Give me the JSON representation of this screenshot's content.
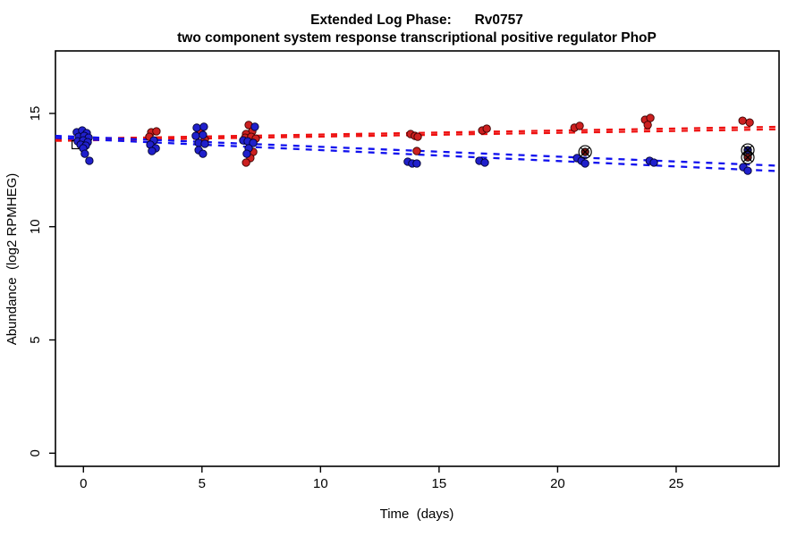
{
  "chart_data": {
    "type": "scatter",
    "title": "Extended Log Phase:      Rv0757",
    "subtitle": "two component system response transcriptional positive regulator PhoP",
    "x_axis": {
      "label": "Time  (days)",
      "ticks": [
        0,
        5,
        10,
        15,
        20,
        25
      ],
      "range": [
        -1.18,
        29.34
      ]
    },
    "y_axis": {
      "label": "Abundance  (log2 RPMHEG)",
      "ticks": [
        0,
        5,
        10,
        15
      ],
      "range": [
        -0.58,
        17.76
      ]
    },
    "grid": "off",
    "legend": "none",
    "series": [
      {
        "name": "red-condition",
        "color": "#cc2020",
        "edge": "#3a0000",
        "points": [
          [
            2.86,
            14.17
          ],
          [
            3.08,
            14.21
          ],
          [
            2.78,
            13.97
          ],
          [
            4.93,
            14.25
          ],
          [
            5.12,
            13.85
          ],
          [
            6.97,
            14.49
          ],
          [
            7.12,
            14.21
          ],
          [
            6.86,
            14.09
          ],
          [
            6.82,
            13.93
          ],
          [
            7.08,
            13.97
          ],
          [
            7.27,
            13.89
          ],
          [
            7.16,
            13.3
          ],
          [
            7.04,
            13.03
          ],
          [
            6.86,
            12.83
          ],
          [
            13.8,
            14.09
          ],
          [
            13.98,
            14.01
          ],
          [
            14.1,
            13.97
          ],
          [
            14.06,
            13.34
          ],
          [
            16.82,
            14.25
          ],
          [
            17.01,
            14.33
          ],
          [
            20.71,
            14.37
          ],
          [
            20.93,
            14.45
          ],
          [
            23.69,
            14.72
          ],
          [
            23.91,
            14.8
          ],
          [
            23.8,
            14.49
          ],
          [
            27.8,
            14.68
          ],
          [
            28.1,
            14.6
          ]
        ]
      },
      {
        "name": "blue-condition",
        "color": "#2020cc",
        "edge": "#000030",
        "points": [
          [
            -0.28,
            14.17
          ],
          [
            -0.05,
            14.25
          ],
          [
            0.14,
            14.13
          ],
          [
            -0.2,
            13.97
          ],
          [
            0.03,
            14.01
          ],
          [
            0.22,
            13.93
          ],
          [
            -0.24,
            13.77
          ],
          [
            -0.01,
            13.81
          ],
          [
            0.18,
            13.73
          ],
          [
            -0.12,
            13.62
          ],
          [
            0.1,
            13.58
          ],
          [
            -0.01,
            13.46
          ],
          [
            0.06,
            13.22
          ],
          [
            0.25,
            12.91
          ],
          [
            2.97,
            13.81
          ],
          [
            2.82,
            13.62
          ],
          [
            3.05,
            13.46
          ],
          [
            2.89,
            13.34
          ],
          [
            4.78,
            14.37
          ],
          [
            5.08,
            14.41
          ],
          [
            4.74,
            14.01
          ],
          [
            5.04,
            14.05
          ],
          [
            4.86,
            13.7
          ],
          [
            5.12,
            13.66
          ],
          [
            4.86,
            13.38
          ],
          [
            5.04,
            13.22
          ],
          [
            7.23,
            14.41
          ],
          [
            6.74,
            13.81
          ],
          [
            6.93,
            13.77
          ],
          [
            7.16,
            13.7
          ],
          [
            6.97,
            13.46
          ],
          [
            6.89,
            13.22
          ],
          [
            13.68,
            12.87
          ],
          [
            13.87,
            12.79
          ],
          [
            14.06,
            12.79
          ],
          [
            16.7,
            12.91
          ],
          [
            16.93,
            12.83
          ],
          [
            20.82,
            13.03
          ],
          [
            21.01,
            12.91
          ],
          [
            21.16,
            12.79
          ],
          [
            23.88,
            12.91
          ],
          [
            24.06,
            12.83
          ],
          [
            27.83,
            12.63
          ],
          [
            28.02,
            12.47
          ]
        ]
      }
    ],
    "flagged_points": [
      {
        "x": 21.16,
        "y": 13.3,
        "fill": "#7a1515",
        "marker": "circle-x"
      },
      {
        "x": 28.02,
        "y": 13.38,
        "fill": "#15157a",
        "marker": "circle-x"
      },
      {
        "x": 28.02,
        "y": 13.06,
        "fill": "#7a1515",
        "marker": "circle-x"
      }
    ],
    "hidden_marker": {
      "x": -0.31,
      "y": 13.62,
      "marker": "open-square"
    },
    "trend_lines": [
      {
        "name": "red-fit-1",
        "color": "#ee1010",
        "x": [
          -1.18,
          29.34
        ],
        "y": [
          13.87,
          14.41
        ]
      },
      {
        "name": "red-fit-2",
        "color": "#ee1010",
        "x": [
          -1.18,
          29.34
        ],
        "y": [
          13.79,
          14.3
        ]
      },
      {
        "name": "blue-fit-1",
        "color": "#1010ee",
        "x": [
          -1.18,
          29.34
        ],
        "y": [
          14.01,
          12.69
        ]
      },
      {
        "name": "blue-fit-2",
        "color": "#1010ee",
        "x": [
          -1.18,
          29.34
        ],
        "y": [
          13.92,
          12.45
        ]
      }
    ]
  }
}
